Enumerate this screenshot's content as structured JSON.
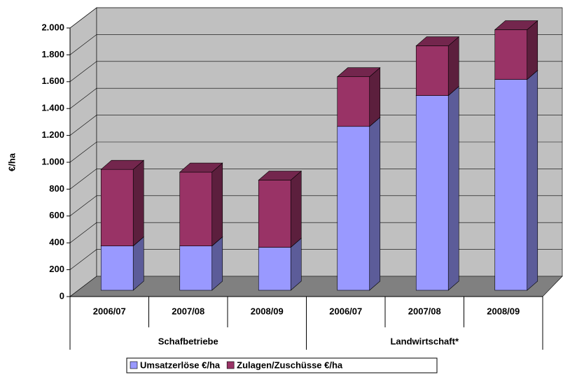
{
  "chart_data": {
    "type": "bar3d_stacked",
    "ylabel": "€/ha",
    "categories": [
      "2006/07",
      "2007/08",
      "2008/09",
      "2006/07",
      "2007/08",
      "2008/09"
    ],
    "groups": [
      "Schafbetriebe",
      "Landwirtschaft*"
    ],
    "series": [
      {
        "name": "Umsatzerlöse €/ha",
        "color": "#9999ff",
        "values": [
          330,
          330,
          320,
          1220,
          1450,
          1570
        ]
      },
      {
        "name": "Zulagen/Zuschüsse €/ha",
        "color": "#993366",
        "values": [
          570,
          550,
          500,
          370,
          370,
          370
        ]
      }
    ],
    "ylim": [
      0,
      2000
    ],
    "yticks": [
      0,
      200,
      400,
      600,
      800,
      {
        "value": 1000,
        "label": "1.000"
      },
      {
        "value": 1200,
        "label": "1.200"
      },
      {
        "value": 1400,
        "label": "1.400"
      },
      {
        "value": 1600,
        "label": "1.600"
      },
      {
        "value": 1800,
        "label": "1.800"
      },
      {
        "value": 2000,
        "label": "2.000"
      }
    ],
    "grid": true,
    "legend": "bottom"
  }
}
